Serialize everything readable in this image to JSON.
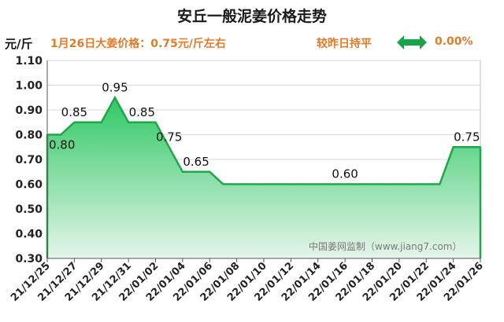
{
  "header": {
    "title": "安丘一般泥姜价格走势",
    "unit": "元/斤",
    "summary": "1月26日大姜价格：0.75元/斤左右",
    "compare_label": "较昨日持平",
    "change_value": "0.00%"
  },
  "watermark": "中国姜网监制（www.jiang7.com）",
  "colors": {
    "line": "#1fa64a",
    "fill_top": "#2fc864",
    "fill_bottom": "#e6f5ea",
    "accent_text": "#e07b2a",
    "arrow": "#18a54a"
  },
  "chart_data": {
    "type": "area",
    "ylabel": "元/斤",
    "ylim": [
      0.3,
      1.1
    ],
    "yticks": [
      "0.30",
      "0.40",
      "0.50",
      "0.60",
      "0.70",
      "0.80",
      "0.90",
      "1.00",
      "1.10"
    ],
    "grid": true,
    "x_tick_labels": [
      "21/12/25",
      "21/12/27",
      "21/12/29",
      "21/12/31",
      "22/01/02",
      "22/01/04",
      "22/01/06",
      "22/01/08",
      "22/01/10",
      "22/01/12",
      "22/01/14",
      "22/01/16",
      "22/01/18",
      "22/01/20",
      "22/01/22",
      "22/01/24",
      "22/01/26"
    ],
    "series": [
      {
        "dates": [
          "21/12/25",
          "21/12/26",
          "21/12/27",
          "21/12/28",
          "21/12/29",
          "21/12/30",
          "21/12/31",
          "22/01/01",
          "22/01/02",
          "22/01/03",
          "22/01/04",
          "22/01/05",
          "22/01/06",
          "22/01/07",
          "22/01/08",
          "22/01/09",
          "22/01/10",
          "22/01/11",
          "22/01/12",
          "22/01/13",
          "22/01/14",
          "22/01/15",
          "22/01/16",
          "22/01/17",
          "22/01/18",
          "22/01/19",
          "22/01/20",
          "22/01/21",
          "22/01/22",
          "22/01/23",
          "22/01/24",
          "22/01/25",
          "22/01/26"
        ],
        "values": [
          0.8,
          0.8,
          0.85,
          0.85,
          0.85,
          0.95,
          0.85,
          0.85,
          0.85,
          0.75,
          0.65,
          0.65,
          0.65,
          0.6,
          0.6,
          0.6,
          0.6,
          0.6,
          0.6,
          0.6,
          0.6,
          0.6,
          0.6,
          0.6,
          0.6,
          0.6,
          0.6,
          0.6,
          0.6,
          0.6,
          0.75,
          0.75,
          0.75
        ]
      }
    ],
    "data_labels": [
      {
        "date": "21/12/25",
        "text": "0.80"
      },
      {
        "date": "21/12/27",
        "text": "0.85"
      },
      {
        "date": "21/12/30",
        "text": "0.95"
      },
      {
        "date": "22/01/01",
        "text": "0.85"
      },
      {
        "date": "22/01/03",
        "text": "0.75"
      },
      {
        "date": "22/01/05",
        "text": "0.65"
      },
      {
        "date": "22/01/16",
        "text": "0.60"
      },
      {
        "date": "22/01/25",
        "text": "0.75"
      }
    ]
  }
}
